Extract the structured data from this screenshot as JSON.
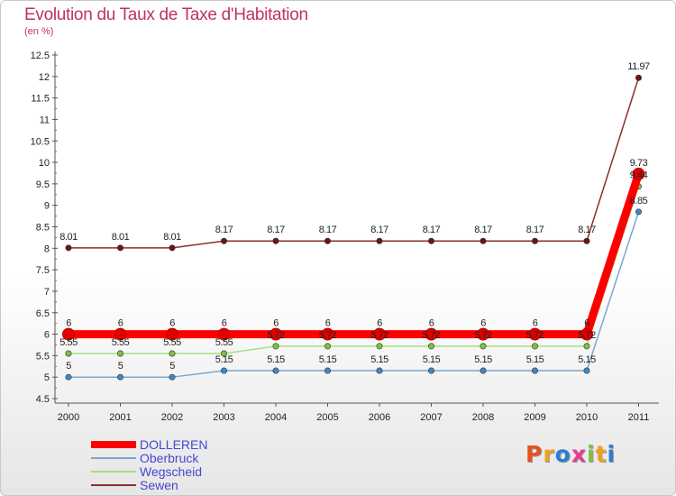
{
  "header": {
    "title": "Evolution du Taux de Taxe d'Habitation",
    "unit": "(en %)"
  },
  "logo": {
    "text": "Proxiti",
    "letter_colors": [
      "#e94f1c",
      "#f0a020",
      "#2a7fd4",
      "#e63d8e",
      "#7cc242",
      "#f0a020",
      "#2a7fd4"
    ]
  },
  "chart_data": {
    "type": "line",
    "title": "Evolution du Taux de Taxe d'Habitation",
    "ylabel": "(en %)",
    "xlabel": "",
    "categories": [
      "2000",
      "2001",
      "2002",
      "2003",
      "2004",
      "2005",
      "2006",
      "2007",
      "2008",
      "2009",
      "2010",
      "2011"
    ],
    "ylim": [
      4.5,
      12.5
    ],
    "yticks": [
      "4.5",
      "5",
      "5.5",
      "6",
      "6.5",
      "7",
      "7.5",
      "8",
      "8.5",
      "9",
      "9.5",
      "10",
      "10.5",
      "11",
      "11.5",
      "12",
      "12.5"
    ],
    "grid": false,
    "legend_position": "bottom-left",
    "series": [
      {
        "name": "Sewen",
        "color": "#8b2e2e",
        "point_color": "#6e1414",
        "values": [
          8.01,
          8.01,
          8.01,
          8.17,
          8.17,
          8.17,
          8.17,
          8.17,
          8.17,
          8.17,
          8.17,
          11.97
        ],
        "labels": [
          "8.01",
          "8.01",
          "8.01",
          "8.17",
          "8.17",
          "8.17",
          "8.17",
          "8.17",
          "8.17",
          "8.17",
          "8.17",
          "11.97"
        ]
      },
      {
        "name": "Wegscheid",
        "color": "#a6df82",
        "point_color": "#7cc242",
        "values": [
          5.55,
          5.55,
          5.55,
          5.55,
          5.72,
          5.72,
          5.72,
          5.72,
          5.72,
          5.72,
          5.72,
          9.44
        ],
        "labels": [
          "5.55",
          "5.55",
          "5.55",
          "5.55",
          "5.72",
          "5.72",
          "5.72",
          "5.72",
          "5.72",
          "5.72",
          "5.72",
          "9.44"
        ]
      },
      {
        "name": "Oberbruck",
        "color": "#7aa6cf",
        "point_color": "#3f86c4",
        "values": [
          5,
          5,
          5,
          5.15,
          5.15,
          5.15,
          5.15,
          5.15,
          5.15,
          5.15,
          5.15,
          8.85
        ],
        "labels": [
          "5",
          "5",
          "5",
          "5.15",
          "5.15",
          "5.15",
          "5.15",
          "5.15",
          "5.15",
          "5.15",
          "5.15",
          "8.85"
        ]
      },
      {
        "name": "DOLLEREN",
        "color": "#ff0000",
        "point_color": "#e00000",
        "values": [
          6,
          6,
          6,
          6,
          6,
          6,
          6,
          6,
          6,
          6,
          6,
          9.73
        ],
        "labels": [
          "6",
          "6",
          "6",
          "6",
          "6",
          "6",
          "6",
          "6",
          "6",
          "6",
          "6",
          "9.73"
        ]
      }
    ]
  },
  "legend": {
    "items": [
      {
        "label": "DOLLEREN",
        "color": "#ff0000"
      },
      {
        "label": "Oberbruck",
        "color": "#7aa6cf"
      },
      {
        "label": "Wegscheid",
        "color": "#a6df82"
      },
      {
        "label": "Sewen",
        "color": "#8b2e2e"
      }
    ]
  }
}
